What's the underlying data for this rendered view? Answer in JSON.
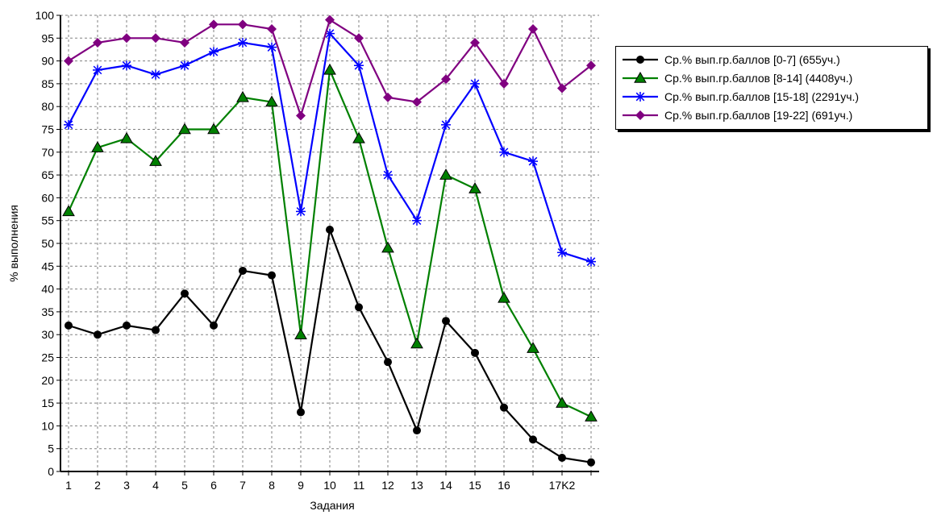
{
  "chart_data": {
    "type": "line",
    "xlabel": "Задания",
    "ylabel": "% выполнения",
    "ylim": [
      0,
      100
    ],
    "yticks": [
      0,
      5,
      10,
      15,
      20,
      25,
      30,
      35,
      40,
      45,
      50,
      55,
      60,
      65,
      70,
      75,
      80,
      85,
      90,
      95,
      100
    ],
    "grid": true,
    "legend_position": "right",
    "x_tick_labels": [
      "1",
      "2",
      "3",
      "4",
      "5",
      "6",
      "7",
      "8",
      "9",
      "10",
      "11",
      "12",
      "13",
      "14",
      "15",
      "16",
      "",
      "17K2",
      ""
    ],
    "series": [
      {
        "name": "Ср.% вып.гр.баллов [0-7] (655уч.)",
        "color": "#000000",
        "marker": "circle",
        "values": [
          32,
          30,
          32,
          31,
          39,
          32,
          44,
          43,
          13,
          53,
          36,
          24,
          9,
          33,
          26,
          14,
          7,
          3,
          2
        ]
      },
      {
        "name": "Ср.% вып.гр.баллов [8-14] (4408уч.)",
        "color": "#008000",
        "marker": "triangle",
        "values": [
          57,
          71,
          73,
          68,
          75,
          75,
          82,
          81,
          30,
          88,
          73,
          49,
          28,
          65,
          62,
          38,
          27,
          15,
          12
        ]
      },
      {
        "name": "Ср.% вып.гр.баллов [15-18] (2291уч.)",
        "color": "#0000ff",
        "marker": "star",
        "values": [
          76,
          88,
          89,
          87,
          89,
          92,
          94,
          93,
          57,
          96,
          89,
          65,
          55,
          76,
          85,
          70,
          68,
          48,
          46
        ]
      },
      {
        "name": "Ср.% вып.гр.баллов [19-22] (691уч.)",
        "color": "#800080",
        "marker": "diamond",
        "values": [
          90,
          94,
          95,
          95,
          94,
          98,
          98,
          97,
          78,
          99,
          95,
          82,
          81,
          86,
          94,
          85,
          97,
          84,
          89
        ]
      }
    ]
  }
}
